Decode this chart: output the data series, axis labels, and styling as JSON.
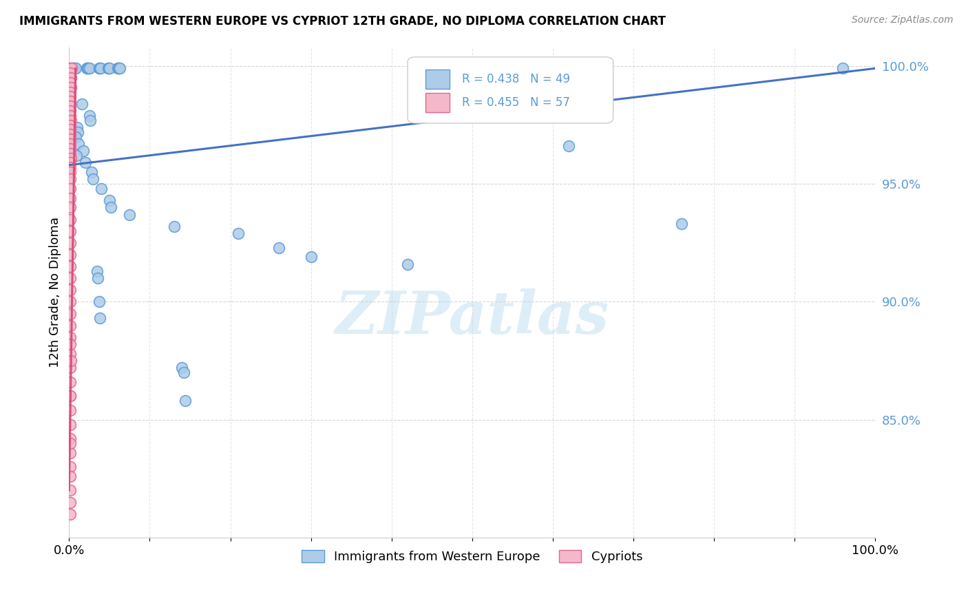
{
  "title": "IMMIGRANTS FROM WESTERN EUROPE VS CYPRIOT 12TH GRADE, NO DIPLOMA CORRELATION CHART",
  "source": "Source: ZipAtlas.com",
  "ylabel": "12th Grade, No Diploma",
  "legend_blue_label": "Immigrants from Western Europe",
  "legend_pink_label": "Cypriots",
  "blue_color": "#aecce8",
  "pink_color": "#f5b8cb",
  "blue_edge_color": "#5b9bd5",
  "pink_edge_color": "#e8638a",
  "blue_line_color": "#4472c4",
  "pink_line_color": "#d94f7a",
  "ytick_color": "#5b9bd5",
  "blue_scatter": [
    [
      0.005,
      0.999
    ],
    [
      0.006,
      0.999
    ],
    [
      0.007,
      0.999
    ],
    [
      0.008,
      0.999
    ],
    [
      0.022,
      0.999
    ],
    [
      0.023,
      0.999
    ],
    [
      0.024,
      0.999
    ],
    [
      0.025,
      0.999
    ],
    [
      0.037,
      0.999
    ],
    [
      0.038,
      0.999
    ],
    [
      0.039,
      0.999
    ],
    [
      0.048,
      0.999
    ],
    [
      0.049,
      0.999
    ],
    [
      0.05,
      0.999
    ],
    [
      0.06,
      0.999
    ],
    [
      0.061,
      0.999
    ],
    [
      0.062,
      0.999
    ],
    [
      0.063,
      0.999
    ],
    [
      0.96,
      0.999
    ],
    [
      0.016,
      0.984
    ],
    [
      0.025,
      0.979
    ],
    [
      0.026,
      0.977
    ],
    [
      0.01,
      0.974
    ],
    [
      0.011,
      0.972
    ],
    [
      0.008,
      0.97
    ],
    [
      0.012,
      0.967
    ],
    [
      0.018,
      0.964
    ],
    [
      0.009,
      0.962
    ],
    [
      0.02,
      0.959
    ],
    [
      0.028,
      0.955
    ],
    [
      0.03,
      0.952
    ],
    [
      0.04,
      0.948
    ],
    [
      0.05,
      0.943
    ],
    [
      0.052,
      0.94
    ],
    [
      0.075,
      0.937
    ],
    [
      0.13,
      0.932
    ],
    [
      0.21,
      0.929
    ],
    [
      0.26,
      0.923
    ],
    [
      0.3,
      0.919
    ],
    [
      0.42,
      0.916
    ],
    [
      0.62,
      0.966
    ],
    [
      0.76,
      0.933
    ],
    [
      0.035,
      0.913
    ],
    [
      0.036,
      0.91
    ],
    [
      0.037,
      0.9
    ],
    [
      0.038,
      0.893
    ],
    [
      0.14,
      0.872
    ],
    [
      0.142,
      0.87
    ],
    [
      0.144,
      0.858
    ]
  ],
  "pink_scatter": [
    [
      0.001,
      0.999
    ],
    [
      0.002,
      0.999
    ],
    [
      0.003,
      0.999
    ],
    [
      0.001,
      0.997
    ],
    [
      0.002,
      0.995
    ],
    [
      0.001,
      0.993
    ],
    [
      0.002,
      0.991
    ],
    [
      0.001,
      0.989
    ],
    [
      0.001,
      0.987
    ],
    [
      0.001,
      0.985
    ],
    [
      0.001,
      0.983
    ],
    [
      0.001,
      0.981
    ],
    [
      0.001,
      0.979
    ],
    [
      0.002,
      0.977
    ],
    [
      0.001,
      0.975
    ],
    [
      0.001,
      0.973
    ],
    [
      0.001,
      0.971
    ],
    [
      0.001,
      0.969
    ],
    [
      0.001,
      0.967
    ],
    [
      0.001,
      0.965
    ],
    [
      0.001,
      0.963
    ],
    [
      0.002,
      0.961
    ],
    [
      0.001,
      0.959
    ],
    [
      0.001,
      0.957
    ],
    [
      0.001,
      0.955
    ],
    [
      0.001,
      0.952
    ],
    [
      0.001,
      0.948
    ],
    [
      0.001,
      0.944
    ],
    [
      0.001,
      0.94
    ],
    [
      0.001,
      0.935
    ],
    [
      0.001,
      0.93
    ],
    [
      0.001,
      0.925
    ],
    [
      0.001,
      0.92
    ],
    [
      0.001,
      0.915
    ],
    [
      0.001,
      0.91
    ],
    [
      0.001,
      0.905
    ],
    [
      0.001,
      0.9
    ],
    [
      0.001,
      0.895
    ],
    [
      0.001,
      0.89
    ],
    [
      0.001,
      0.885
    ],
    [
      0.001,
      0.878
    ],
    [
      0.001,
      0.872
    ],
    [
      0.001,
      0.866
    ],
    [
      0.001,
      0.86
    ],
    [
      0.001,
      0.854
    ],
    [
      0.002,
      0.875
    ],
    [
      0.001,
      0.848
    ],
    [
      0.001,
      0.842
    ],
    [
      0.001,
      0.836
    ],
    [
      0.001,
      0.83
    ],
    [
      0.001,
      0.882
    ],
    [
      0.001,
      0.86
    ],
    [
      0.001,
      0.84
    ],
    [
      0.001,
      0.826
    ],
    [
      0.001,
      0.82
    ],
    [
      0.001,
      0.815
    ],
    [
      0.001,
      0.81
    ]
  ],
  "xlim": [
    0.0,
    1.0
  ],
  "ylim": [
    0.8,
    1.008
  ],
  "ytick_vals": [
    1.0,
    0.95,
    0.9,
    0.85
  ],
  "ytick_labels": [
    "100.0%",
    "95.0%",
    "90.0%",
    "85.0%"
  ],
  "blue_trend_x": [
    0.0,
    1.0
  ],
  "blue_trend_y": [
    0.958,
    0.999
  ],
  "pink_trend_x": [
    0.0,
    0.008
  ],
  "pink_trend_y": [
    0.82,
    0.999
  ],
  "watermark_text": "ZIPatlas",
  "legend_R_blue": "R = 0.438",
  "legend_N_blue": "N = 49",
  "legend_R_pink": "R = 0.455",
  "legend_N_pink": "N = 57",
  "background": "#ffffff",
  "grid_color": "#cccccc",
  "marker_size": 130
}
